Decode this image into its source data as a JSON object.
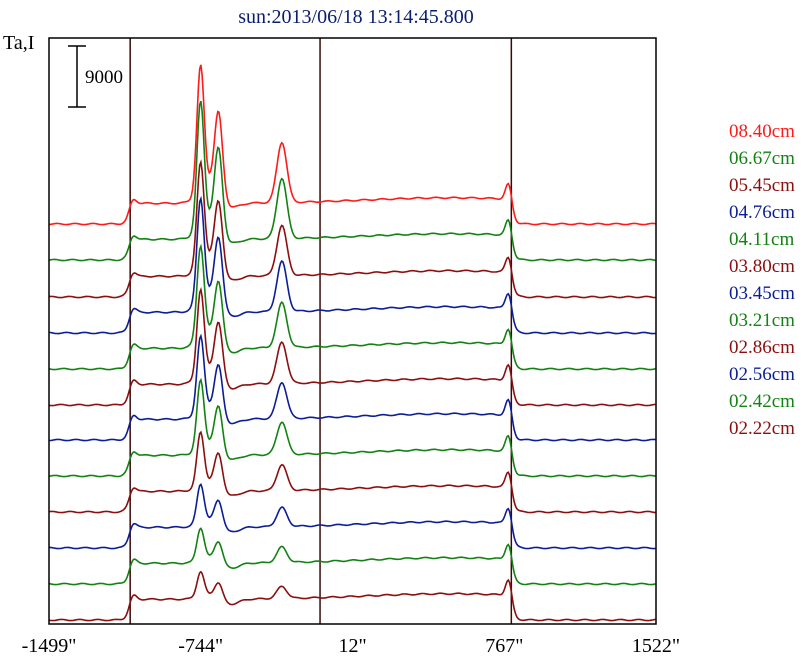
{
  "chart_data": {
    "type": "line",
    "title": "sun:2013/06/18 13:14:45.800",
    "ylabel": "Ta,I",
    "xlabel": "",
    "x_ticks": [
      {
        "value": -1499,
        "label": "-1499\""
      },
      {
        "value": -744,
        "label": "-744\""
      },
      {
        "value": 12,
        "label": "12\""
      },
      {
        "value": 767,
        "label": "767\""
      },
      {
        "value": 1522,
        "label": "1522\""
      }
    ],
    "xlim": [
      -1499,
      1522
    ],
    "vertical_lines": [
      -1095,
      -150,
      802
    ],
    "scale_bar_label": "9000",
    "series": [
      {
        "name": "08.40cm",
        "color": "#ff1a1a",
        "amp": 1.75
      },
      {
        "name": "06.67cm",
        "color": "#128212",
        "amp": 1.75
      },
      {
        "name": "05.45cm",
        "color": "#8b0f0f",
        "amp": 1.45
      },
      {
        "name": "04.76cm",
        "color": "#0c1e96",
        "amp": 1.45
      },
      {
        "name": "04.11cm",
        "color": "#128212",
        "amp": 1.3
      },
      {
        "name": "03.80cm",
        "color": "#8b0f0f",
        "amp": 1.2
      },
      {
        "name": "03.45cm",
        "color": "#0c1e96",
        "amp": 1.05
      },
      {
        "name": "03.21cm",
        "color": "#128212",
        "amp": 0.95
      },
      {
        "name": "02.86cm",
        "color": "#8b0f0f",
        "amp": 0.75
      },
      {
        "name": "02.56cm",
        "color": "#0c1e96",
        "amp": 0.55
      },
      {
        "name": "02.42cm",
        "color": "#128212",
        "amp": 0.45
      },
      {
        "name": "02.22cm",
        "color": "#8b0f0f",
        "amp": 0.35
      }
    ],
    "grid": false,
    "legend_position": "right"
  }
}
